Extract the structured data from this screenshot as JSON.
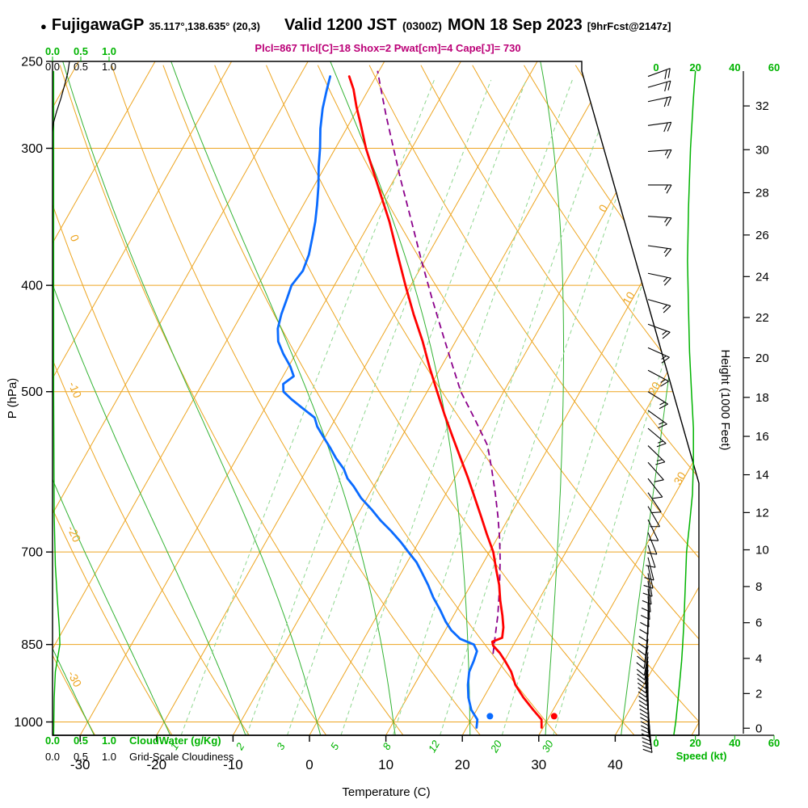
{
  "header": {
    "bullet": "●",
    "station": "FujigawaGP",
    "coords": "35.117°,138.635° (20,3)",
    "valid": "Valid 1200 JST",
    "zulu": "(0300Z)",
    "date": "MON 18 Sep 2023",
    "fcst": "[9hrFcst@2147z]"
  },
  "indices_line": "Plcl=867 Tlcl[C]=18 Shox=2 Pwat[cm]=4 Cape[J]= 730",
  "axes": {
    "pressure": {
      "label": "P (hPa)",
      "ticks": [
        250,
        300,
        400,
        500,
        700,
        850,
        1000
      ]
    },
    "temperature": {
      "label": "Temperature (C)",
      "ticks": [
        -30,
        -20,
        -10,
        0,
        10,
        20,
        30,
        40
      ]
    },
    "height": {
      "label": "Height (1000 Feet)",
      "ticks": [
        0,
        2,
        4,
        6,
        8,
        10,
        12,
        14,
        16,
        18,
        20,
        22,
        24,
        26,
        28,
        30,
        32
      ]
    },
    "speed": {
      "label": "Speed (kt)",
      "ticks": [
        0,
        20,
        40,
        60
      ]
    },
    "cloudwater": {
      "label": "CloudWater (g/Kg)",
      "ticks": [
        "0.0",
        "0.5",
        "1.0"
      ]
    },
    "cloudiness": {
      "label": "Grid-Scale Cloudiness",
      "ticks": [
        "0.0",
        "0.5",
        "1.0"
      ]
    }
  },
  "grid": {
    "isotherm_step": 10,
    "isotherm_diag_labels": [
      0,
      10,
      20,
      30
    ],
    "dry_adiabat_step": 10,
    "dry_adiabat_edge_labels": [
      -30,
      -20,
      -10,
      0,
      10
    ],
    "moist_adiabat_values": [
      -40,
      -30,
      -20,
      -10,
      0,
      10,
      20,
      30,
      40
    ],
    "mixing_ratio_values": [
      1,
      2,
      3,
      5,
      8,
      12,
      20,
      30
    ]
  },
  "colors": {
    "orange": "#eda521",
    "green": "#00b300",
    "greenMoist": "#33b333",
    "greenLight": "#8ed68e",
    "red": "#ff0000",
    "blue": "#0a6bff",
    "purple": "#8b008b",
    "indices": "#bb0077"
  },
  "chart_data": {
    "type": "line",
    "subtype": "skew-t-log-p-sounding",
    "title": "FujigawaGP sounding valid 1200 JST MON 18 Sep 2023",
    "pressure_range_hpa": [
      1028,
      250
    ],
    "xlabel": "Temperature (C)",
    "ylabel": "P (hPa)",
    "series": {
      "temperature_c": {
        "color": "#ff0000",
        "points": [
          [
            1012,
            29.8
          ],
          [
            995,
            29.2
          ],
          [
            975,
            27.4
          ],
          [
            950,
            25.2
          ],
          [
            925,
            23.2
          ],
          [
            900,
            21.7
          ],
          [
            880,
            20.1
          ],
          [
            865,
            18.8
          ],
          [
            852,
            17.4
          ],
          [
            845,
            17.0
          ],
          [
            838,
            18.0
          ],
          [
            820,
            17.4
          ],
          [
            800,
            16.4
          ],
          [
            775,
            15.0
          ],
          [
            750,
            13.7
          ],
          [
            725,
            12.1
          ],
          [
            700,
            10.5
          ],
          [
            675,
            8.4
          ],
          [
            650,
            6.3
          ],
          [
            625,
            4.1
          ],
          [
            600,
            1.8
          ],
          [
            575,
            -0.7
          ],
          [
            550,
            -3.3
          ],
          [
            525,
            -6.0
          ],
          [
            500,
            -8.7
          ],
          [
            475,
            -11.5
          ],
          [
            450,
            -14.3
          ],
          [
            425,
            -17.5
          ],
          [
            400,
            -20.7
          ],
          [
            375,
            -24.0
          ],
          [
            350,
            -27.5
          ],
          [
            325,
            -31.6
          ],
          [
            300,
            -36.0
          ],
          [
            285,
            -38.5
          ],
          [
            275,
            -40.3
          ],
          [
            265,
            -42.0
          ],
          [
            258,
            -43.5
          ]
        ]
      },
      "dewpoint_c": {
        "color": "#0a6bff",
        "points": [
          [
            1012,
            21.3
          ],
          [
            995,
            20.8
          ],
          [
            975,
            19.3
          ],
          [
            950,
            18.0
          ],
          [
            925,
            17.0
          ],
          [
            900,
            16.2
          ],
          [
            880,
            16.0
          ],
          [
            862,
            15.7
          ],
          [
            850,
            14.8
          ],
          [
            840,
            12.6
          ],
          [
            825,
            10.8
          ],
          [
            810,
            9.4
          ],
          [
            790,
            7.8
          ],
          [
            770,
            6.0
          ],
          [
            750,
            4.4
          ],
          [
            730,
            2.6
          ],
          [
            715,
            1.2
          ],
          [
            700,
            -0.6
          ],
          [
            685,
            -2.4
          ],
          [
            670,
            -4.4
          ],
          [
            655,
            -6.6
          ],
          [
            640,
            -8.6
          ],
          [
            625,
            -10.8
          ],
          [
            610,
            -12.6
          ],
          [
            600,
            -14.0
          ],
          [
            588,
            -15.2
          ],
          [
            575,
            -17.0
          ],
          [
            562,
            -18.6
          ],
          [
            550,
            -20.2
          ],
          [
            538,
            -21.8
          ],
          [
            528,
            -22.8
          ],
          [
            518,
            -25.0
          ],
          [
            508,
            -27.2
          ],
          [
            500,
            -28.8
          ],
          [
            492,
            -29.4
          ],
          [
            484,
            -28.6
          ],
          [
            474,
            -29.8
          ],
          [
            462,
            -31.6
          ],
          [
            450,
            -33.2
          ],
          [
            438,
            -34.2
          ],
          [
            425,
            -34.8
          ],
          [
            412,
            -35.2
          ],
          [
            400,
            -35.6
          ],
          [
            388,
            -35.2
          ],
          [
            375,
            -35.6
          ],
          [
            362,
            -36.4
          ],
          [
            350,
            -37.2
          ],
          [
            338,
            -38.2
          ],
          [
            325,
            -39.4
          ],
          [
            312,
            -40.8
          ],
          [
            300,
            -42.0
          ],
          [
            288,
            -43.4
          ],
          [
            276,
            -44.6
          ],
          [
            266,
            -45.4
          ],
          [
            258,
            -46.0
          ]
        ]
      },
      "parcel_c": {
        "color": "#8b008b",
        "dashed": true,
        "points": [
          [
            867,
            18.0
          ],
          [
            830,
            16.8
          ],
          [
            800,
            15.8
          ],
          [
            770,
            14.6
          ],
          [
            740,
            13.3
          ],
          [
            710,
            11.9
          ],
          [
            680,
            10.3
          ],
          [
            650,
            8.5
          ],
          [
            620,
            6.5
          ],
          [
            590,
            4.3
          ],
          [
            560,
            1.9
          ],
          [
            530,
            -1.7
          ],
          [
            500,
            -5.6
          ],
          [
            470,
            -9.0
          ],
          [
            440,
            -12.6
          ],
          [
            410,
            -16.4
          ],
          [
            380,
            -20.4
          ],
          [
            350,
            -24.6
          ],
          [
            320,
            -29.2
          ],
          [
            300,
            -32.4
          ],
          [
            280,
            -35.8
          ],
          [
            265,
            -38.4
          ],
          [
            255,
            -40.2
          ]
        ]
      },
      "wind_speed_kt": {
        "color": "#00b300",
        "points": [
          [
            1028,
            9
          ],
          [
            1000,
            10
          ],
          [
            960,
            11
          ],
          [
            920,
            12
          ],
          [
            880,
            13
          ],
          [
            850,
            13.5
          ],
          [
            820,
            14
          ],
          [
            780,
            14.5
          ],
          [
            740,
            15
          ],
          [
            700,
            15.5
          ],
          [
            660,
            17
          ],
          [
            620,
            18.5
          ],
          [
            580,
            19
          ],
          [
            540,
            19
          ],
          [
            500,
            18
          ],
          [
            460,
            17
          ],
          [
            420,
            16.5
          ],
          [
            380,
            16
          ],
          [
            340,
            16.5
          ],
          [
            300,
            17.5
          ],
          [
            270,
            19
          ],
          [
            255,
            20
          ]
        ]
      },
      "cloud_water_gkg": {
        "color": "#00b300",
        "points": [
          [
            255,
            0.02
          ],
          [
            500,
            0.02
          ],
          [
            650,
            0.03
          ],
          [
            720,
            0.05
          ],
          [
            780,
            0.09
          ],
          [
            820,
            0.12
          ],
          [
            850,
            0.13
          ],
          [
            875,
            0.09
          ],
          [
            900,
            0.05
          ],
          [
            950,
            0.03
          ],
          [
            1028,
            0.02
          ]
        ]
      },
      "grid_scale_cloudiness": {
        "color": "#000000",
        "points": [
          [
            250,
            0.3
          ],
          [
            256,
            0.27
          ],
          [
            262,
            0.22
          ],
          [
            270,
            0.15
          ],
          [
            278,
            0.07
          ],
          [
            284,
            0.02
          ],
          [
            290,
            0
          ],
          [
            1028,
            0
          ]
        ]
      }
    },
    "surface_markers": [
      {
        "series": "temperature",
        "color": "#ff0000",
        "pressure": 988,
        "value_c": 30.6
      },
      {
        "series": "dewpoint",
        "color": "#0a6bff",
        "pressure": 988,
        "value_c": 22.2
      }
    ],
    "wind_barbs_p_dir_kt": [
      [
        1016,
        170,
        9
      ],
      [
        1008,
        171,
        9
      ],
      [
        1000,
        172,
        10
      ],
      [
        992,
        173,
        10
      ],
      [
        984,
        174,
        10
      ],
      [
        976,
        175,
        10
      ],
      [
        968,
        176,
        11
      ],
      [
        960,
        177,
        11
      ],
      [
        952,
        178,
        11
      ],
      [
        944,
        179,
        11
      ],
      [
        936,
        180,
        12
      ],
      [
        928,
        181,
        12
      ],
      [
        920,
        182,
        12
      ],
      [
        912,
        183,
        12
      ],
      [
        904,
        184,
        12
      ],
      [
        896,
        185,
        12
      ],
      [
        888,
        186,
        12
      ],
      [
        880,
        187,
        12
      ],
      [
        872,
        188,
        12
      ],
      [
        864,
        189,
        12
      ],
      [
        852,
        190,
        12
      ],
      [
        840,
        188,
        11
      ],
      [
        828,
        186,
        11
      ],
      [
        816,
        184,
        11
      ],
      [
        804,
        182,
        10
      ],
      [
        792,
        180,
        10
      ],
      [
        780,
        178,
        10
      ],
      [
        768,
        176,
        10
      ],
      [
        756,
        174,
        10
      ],
      [
        744,
        172,
        10
      ],
      [
        732,
        170,
        10
      ],
      [
        720,
        168,
        10
      ],
      [
        708,
        166,
        10
      ],
      [
        690,
        162,
        11
      ],
      [
        672,
        158,
        11
      ],
      [
        654,
        154,
        11
      ],
      [
        636,
        150,
        12
      ],
      [
        618,
        146,
        12
      ],
      [
        600,
        142,
        12
      ],
      [
        580,
        138,
        12
      ],
      [
        560,
        134,
        13
      ],
      [
        540,
        130,
        13
      ],
      [
        520,
        126,
        13
      ],
      [
        500,
        122,
        14
      ],
      [
        478,
        118,
        14
      ],
      [
        456,
        114,
        14
      ],
      [
        434,
        110,
        15
      ],
      [
        412,
        106,
        15
      ],
      [
        390,
        102,
        15
      ],
      [
        368,
        98,
        16
      ],
      [
        346,
        94,
        16
      ],
      [
        324,
        90,
        17
      ],
      [
        302,
        86,
        17
      ],
      [
        286,
        82,
        18
      ],
      [
        272,
        78,
        18
      ],
      [
        264,
        74,
        19
      ],
      [
        258,
        70,
        20
      ]
    ]
  }
}
